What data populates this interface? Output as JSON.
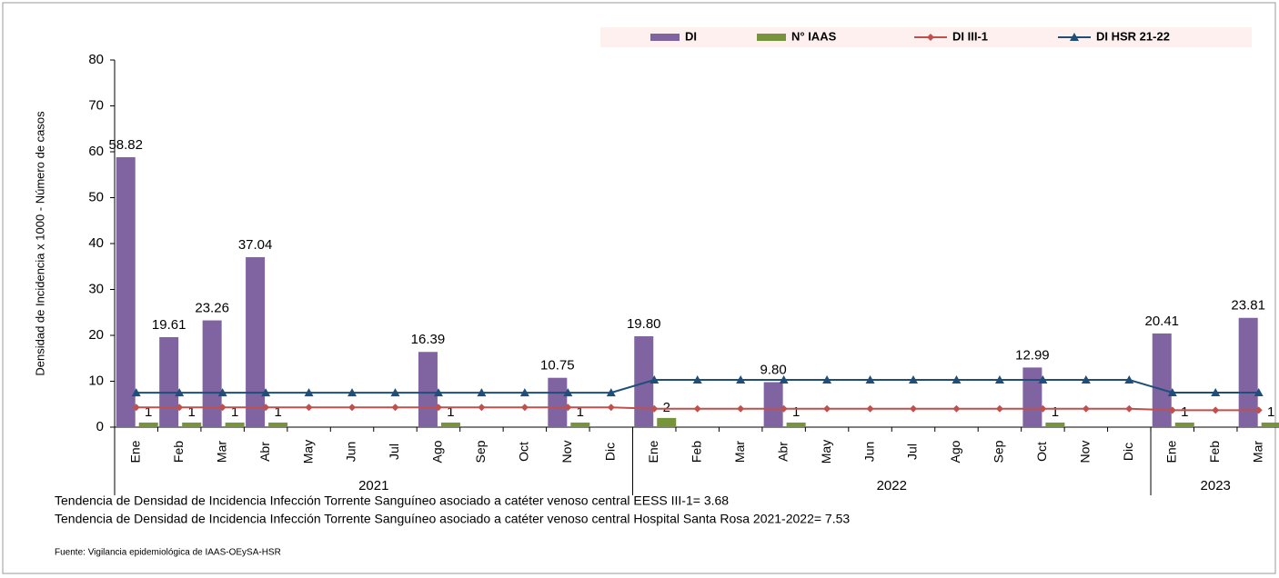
{
  "chart_data": {
    "type": "bar",
    "y_axis_label": "Densidad de Incidencia x 1000 - Número de casos",
    "categories": [
      "Ene",
      "Feb",
      "Mar",
      "Abr",
      "May",
      "Jun",
      "Jul",
      "Ago",
      "Sep",
      "Oct",
      "Nov",
      "Dic",
      "Ene",
      "Feb",
      "Mar",
      "Abr",
      "May",
      "Jun",
      "Jul",
      "Ago",
      "Sep",
      "Oct",
      "Nov",
      "Dic",
      "Ene",
      "Feb",
      "Mar"
    ],
    "groups": [
      {
        "label": "2021",
        "months": 12
      },
      {
        "label": "2022",
        "months": 12
      },
      {
        "label": "2023",
        "months": 3
      }
    ],
    "ylim": [
      0,
      80
    ],
    "yticks": [
      0,
      10,
      20,
      30,
      40,
      50,
      60,
      70,
      80
    ],
    "series": [
      {
        "name": "DI",
        "type": "bar",
        "color": "#8064a2",
        "values": [
          58.82,
          19.61,
          23.26,
          37.04,
          null,
          null,
          null,
          16.39,
          null,
          null,
          10.75,
          null,
          19.8,
          null,
          null,
          9.8,
          null,
          null,
          null,
          null,
          null,
          12.99,
          null,
          null,
          20.41,
          null,
          23.81
        ],
        "value_labels": [
          "58.82",
          "19.61",
          "23.26",
          "37.04",
          null,
          null,
          null,
          "16.39",
          null,
          null,
          "10.75",
          null,
          "19.80",
          null,
          null,
          "9.80",
          null,
          null,
          null,
          null,
          null,
          "12.99",
          null,
          null,
          "20.41",
          null,
          "23.81"
        ]
      },
      {
        "name": "N° IAAS",
        "type": "bar",
        "color": "#77933c",
        "values": [
          1,
          1,
          1,
          1,
          null,
          null,
          null,
          1,
          null,
          null,
          1,
          null,
          2,
          null,
          null,
          1,
          null,
          null,
          null,
          null,
          null,
          1,
          null,
          null,
          1,
          null,
          1
        ]
      },
      {
        "name": "DI III-1",
        "type": "line",
        "marker": "diamond",
        "color": "#c0504d",
        "values": [
          4.3,
          4.3,
          4.3,
          4.3,
          4.3,
          4.3,
          4.3,
          4.3,
          4.3,
          4.3,
          4.3,
          4.3,
          4.0,
          4.0,
          4.0,
          4.0,
          4.0,
          4.0,
          4.0,
          4.0,
          4.0,
          4.0,
          4.0,
          4.0,
          3.68,
          3.68,
          3.68
        ]
      },
      {
        "name": "DI HSR 21-22",
        "type": "line",
        "marker": "triangle",
        "color": "#1f4e79",
        "values": [
          7.5,
          7.5,
          7.5,
          7.5,
          7.5,
          7.5,
          7.5,
          7.5,
          7.5,
          7.5,
          7.5,
          7.5,
          10.3,
          10.3,
          10.3,
          10.3,
          10.3,
          10.3,
          10.3,
          10.3,
          10.3,
          10.3,
          10.3,
          10.3,
          7.53,
          7.53,
          7.53
        ]
      }
    ],
    "notes": [
      "Tendencia de Densidad de Incidencia Infección Torrente Sanguíneo asociado a catéter venoso central EESS III-1= 3.68",
      "Tendencia de Densidad de Incidencia Infección Torrente Sanguíneo asociado a catéter venoso central Hospital Santa Rosa 2021-2022= 7.53"
    ],
    "source": "Fuente: Vigilancia epidemiológica de IAAS-OEySA-HSR"
  }
}
